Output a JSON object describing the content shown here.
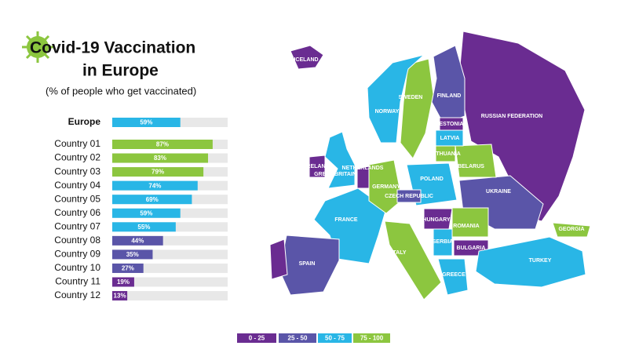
{
  "title_lines": [
    "Covid-19 Vaccination",
    "in Europe"
  ],
  "subtitle": "(% of people who get vaccinated)",
  "chart_data": {
    "type": "bar",
    "orientation": "horizontal",
    "categories": [
      "Europe",
      "Country 01",
      "Country 02",
      "Country 03",
      "Country 04",
      "Country 05",
      "Country 06",
      "Country 07",
      "Country 08",
      "Country 09",
      "Country 10",
      "Country 11",
      "Country 12"
    ],
    "values": [
      59,
      87,
      83,
      79,
      74,
      69,
      59,
      55,
      44,
      35,
      27,
      19,
      13
    ],
    "value_labels": [
      "59%",
      "87%",
      "83%",
      "79%",
      "74%",
      "69%",
      "59%",
      "55%",
      "44%",
      "35%",
      "27%",
      "19%",
      "13%"
    ],
    "xlim": [
      0,
      100
    ],
    "track_color": "#e8e8e8"
  },
  "legend": {
    "bins": [
      0,
      25,
      50,
      75,
      100
    ],
    "labels": [
      "0 - 25",
      "25 - 50",
      "50 - 75",
      "75 - 100"
    ],
    "colors": [
      "#6a2c91",
      "#5a55a8",
      "#29b6e6",
      "#8cc63f"
    ]
  },
  "map": {
    "labels": [
      "ICELAND",
      "NORWAY",
      "SWEDEN",
      "FINLAND",
      "RUSSIAN FEDERATION",
      "ESTONIA",
      "LATVIA",
      "LITHUANIA",
      "BELARUS",
      "POLAND",
      "UKRAINE",
      "GERMANY",
      "NETHERLANDS",
      "IRELAND",
      "GREAT BRITAIN",
      "FRANCE",
      "CZECH REPUBLIC",
      "HUNGARY",
      "ROMANIA",
      "SPAIN",
      "ITALY",
      "SERBIA",
      "BULGARIA",
      "GREECE",
      "TURKEY",
      "GEORGIA"
    ]
  }
}
